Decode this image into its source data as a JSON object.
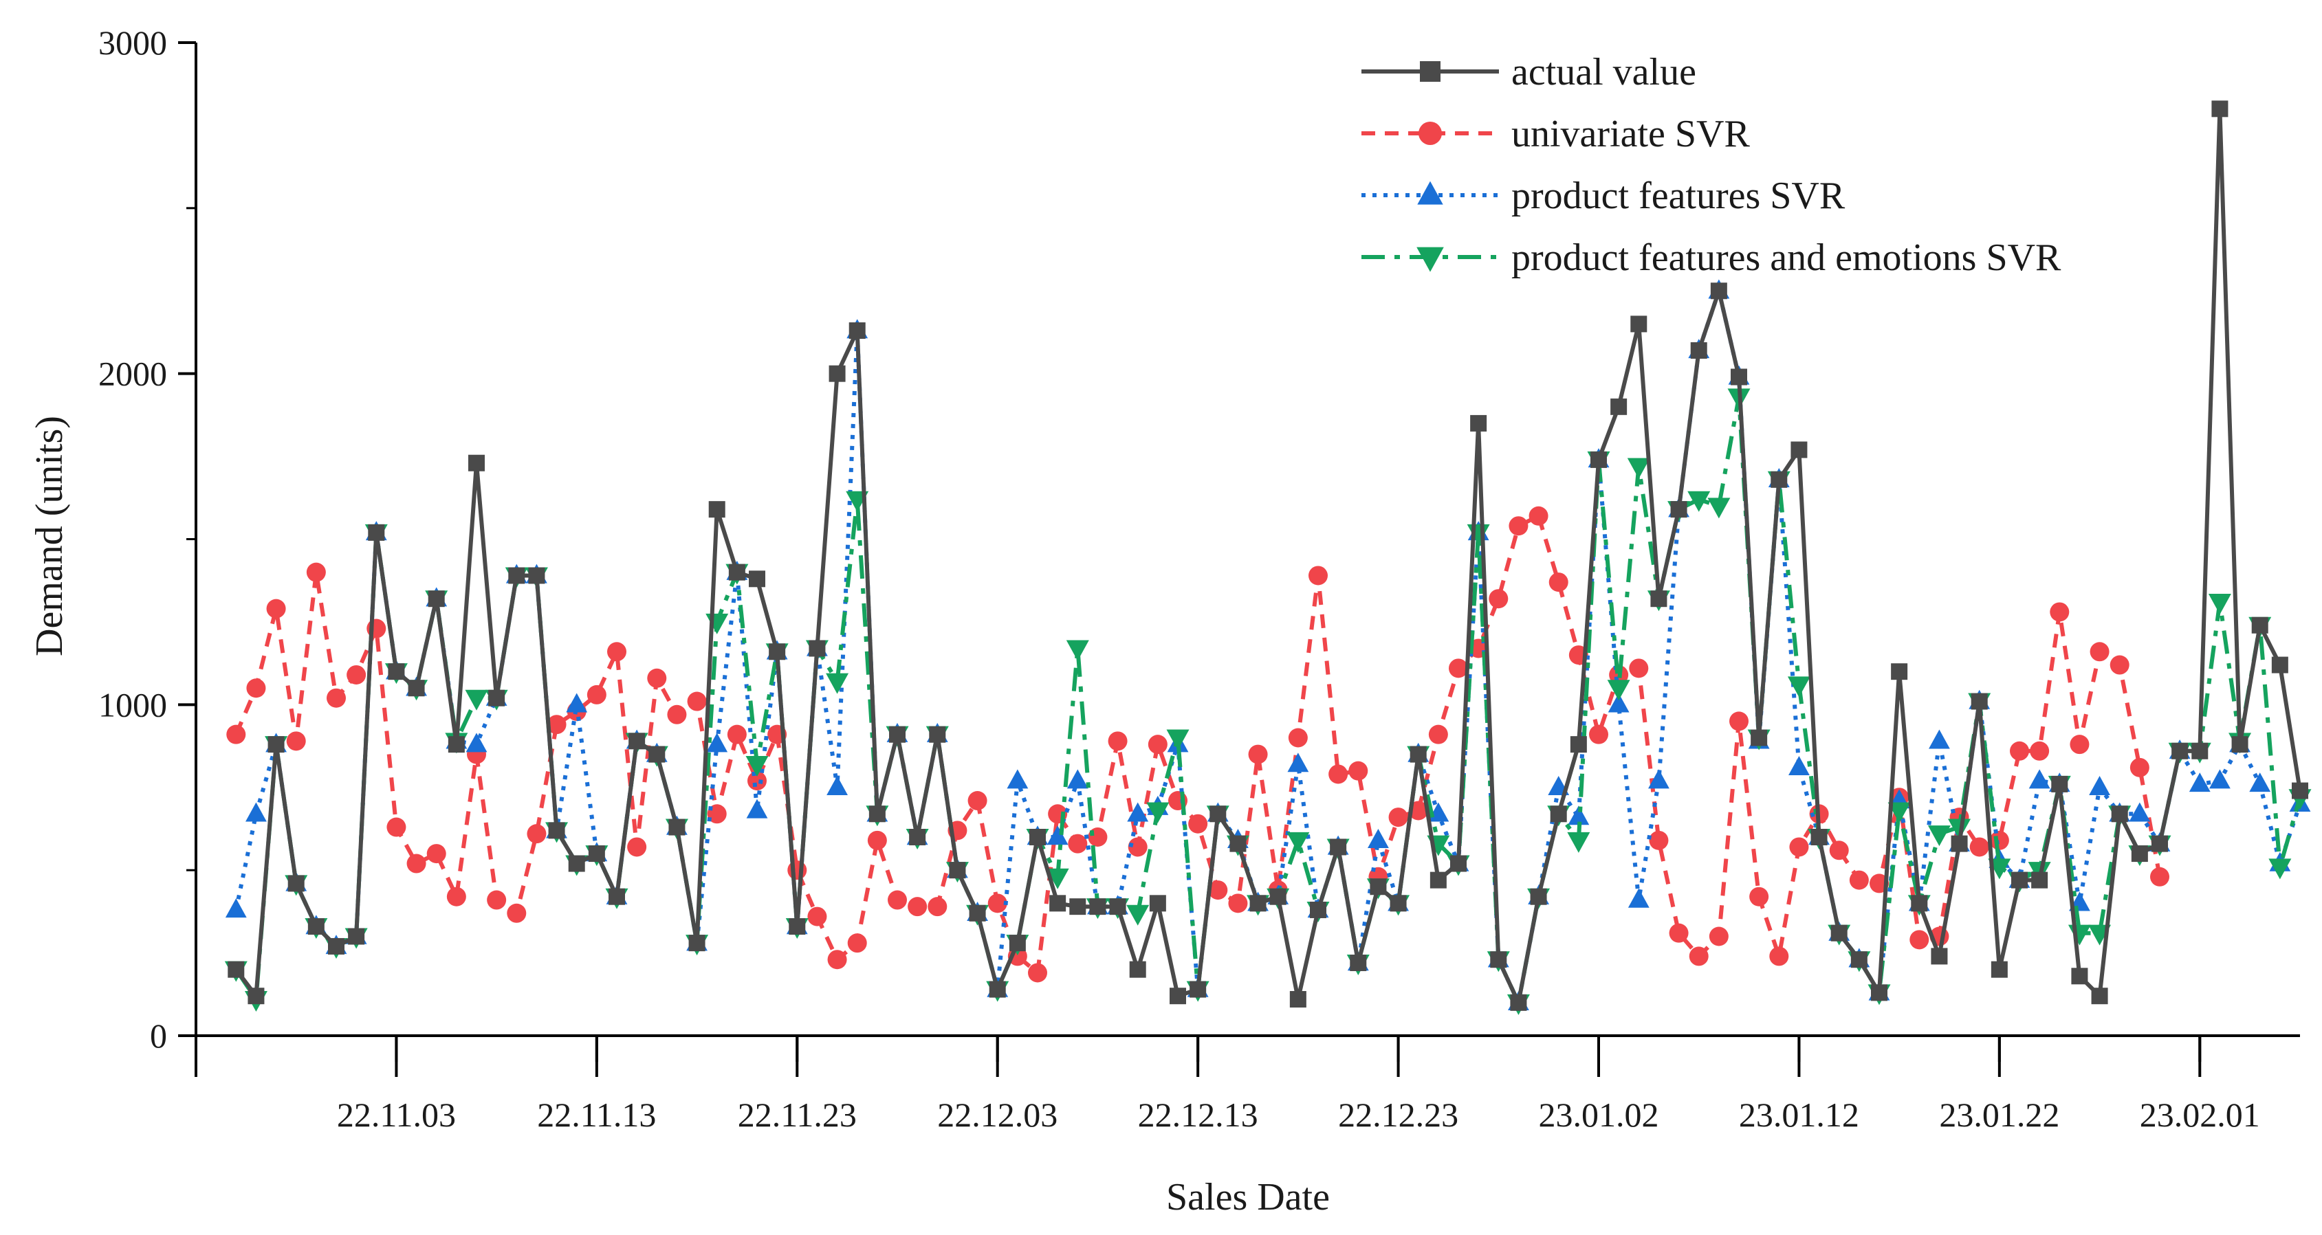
{
  "chart_data": {
    "type": "line",
    "title": "",
    "xlabel": "Sales Date",
    "ylabel": "Demand (units)",
    "ylim": [
      0,
      3000
    ],
    "yticks": [
      0,
      1000,
      2000,
      3000
    ],
    "x_start_date": "22.10.23",
    "xtick_labels": [
      {
        "day": 10,
        "label": "22.11.03"
      },
      {
        "day": 20,
        "label": "22.11.13"
      },
      {
        "day": 30,
        "label": "22.11.23"
      },
      {
        "day": 40,
        "label": "22.12.03"
      },
      {
        "day": 50,
        "label": "22.12.13"
      },
      {
        "day": 60,
        "label": "22.12.23"
      },
      {
        "day": 70,
        "label": "23.01.02"
      },
      {
        "day": 80,
        "label": "23.01.12"
      },
      {
        "day": 90,
        "label": "23.01.22"
      },
      {
        "day": 100,
        "label": "23.02.01"
      }
    ],
    "x_first_day": 2,
    "xlim": [
      0,
      105
    ],
    "legend_position": "top-right",
    "series": [
      {
        "name": "actual value",
        "color": "#4a4a4a",
        "marker": "square",
        "line": "solid",
        "values": [
          200,
          120,
          880,
          460,
          330,
          270,
          300,
          1520,
          1100,
          1050,
          1320,
          880,
          1730,
          1020,
          1390,
          1390,
          620,
          520,
          550,
          420,
          890,
          850,
          630,
          280,
          1590,
          1400,
          1380,
          1160,
          330,
          1170,
          2000,
          2130,
          670,
          910,
          600,
          910,
          500,
          370,
          140,
          280,
          600,
          400,
          390,
          390,
          390,
          200,
          400,
          120,
          140,
          670,
          580,
          400,
          420,
          110,
          380,
          570,
          220,
          450,
          400,
          850,
          470,
          520,
          1850,
          230,
          100,
          420,
          670,
          880,
          1740,
          1900,
          2150,
          1320,
          1590,
          2070,
          2250,
          1990,
          900,
          1680,
          1770,
          600,
          310,
          230,
          130,
          1100,
          400,
          240,
          580,
          1010,
          200,
          470,
          470,
          760,
          180,
          120,
          670,
          550,
          580,
          860,
          860,
          2800,
          880,
          1240,
          1120,
          740
        ]
      },
      {
        "name": "univariate SVR",
        "color": "#f0454a",
        "marker": "circle",
        "line": "dashed",
        "values": [
          910,
          1050,
          1290,
          890,
          1400,
          1020,
          1090,
          1230,
          630,
          520,
          550,
          420,
          850,
          410,
          370,
          610,
          940,
          980,
          1030,
          1160,
          570,
          1080,
          970,
          1010,
          670,
          910,
          770,
          910,
          500,
          360,
          230,
          280,
          590,
          410,
          390,
          390,
          620,
          710,
          400,
          240,
          190,
          670,
          580,
          600,
          890,
          570,
          880,
          710,
          640,
          440,
          400,
          850,
          440,
          900,
          1390,
          790,
          800,
          480,
          660,
          680,
          910,
          1110,
          1170,
          1320,
          1540,
          1570,
          1370,
          1150,
          910,
          1090,
          1110,
          590,
          310,
          240,
          300,
          950,
          420,
          240,
          570,
          670,
          560,
          470,
          460,
          720,
          290,
          300,
          660,
          570,
          590,
          860,
          860,
          1280,
          880,
          1160,
          1120,
          810,
          480
        ]
      },
      {
        "name": "product features SVR",
        "color": "#1a6fd6",
        "marker": "triangle-up",
        "line": "dotted",
        "values": [
          380,
          670,
          880,
          460,
          330,
          270,
          300,
          1520,
          1100,
          1050,
          1320,
          890,
          880,
          1020,
          1390,
          1390,
          620,
          1000,
          550,
          420,
          890,
          850,
          630,
          280,
          880,
          1400,
          680,
          1160,
          330,
          1170,
          750,
          2130,
          670,
          910,
          600,
          910,
          500,
          370,
          140,
          770,
          600,
          600,
          770,
          390,
          390,
          670,
          690,
          880,
          140,
          670,
          590,
          400,
          420,
          820,
          380,
          570,
          220,
          590,
          400,
          850,
          670,
          520,
          1520,
          230,
          100,
          420,
          750,
          660,
          1740,
          1000,
          410,
          770,
          1590,
          2070,
          2250,
          1990,
          890,
          1680,
          810,
          600,
          310,
          230,
          130,
          710,
          400,
          890,
          580,
          1010,
          530,
          470,
          770,
          760,
          400,
          750,
          670,
          670,
          580,
          860,
          760,
          770,
          880,
          760,
          520,
          700
        ]
      },
      {
        "name": "product features and emotions SVR",
        "color": "#15a35e",
        "marker": "triangle-down",
        "line": "dashdot",
        "values": [
          200,
          110,
          880,
          460,
          330,
          270,
          300,
          1520,
          1100,
          1050,
          1320,
          890,
          1020,
          1020,
          1390,
          1390,
          620,
          520,
          550,
          420,
          890,
          850,
          630,
          280,
          1250,
          1400,
          820,
          1160,
          330,
          1170,
          1070,
          1620,
          670,
          910,
          600,
          910,
          500,
          370,
          140,
          280,
          600,
          480,
          1170,
          390,
          390,
          370,
          680,
          900,
          140,
          670,
          580,
          400,
          420,
          590,
          380,
          570,
          220,
          450,
          400,
          850,
          580,
          520,
          1520,
          230,
          100,
          420,
          670,
          590,
          1740,
          1050,
          1720,
          1320,
          1590,
          1620,
          1600,
          1930,
          900,
          1680,
          1060,
          600,
          310,
          230,
          130,
          680,
          400,
          610,
          630,
          1010,
          510,
          470,
          500,
          760,
          310,
          310,
          670,
          550,
          580,
          860,
          860,
          1310,
          890,
          1240,
          510,
          720
        ]
      }
    ]
  }
}
